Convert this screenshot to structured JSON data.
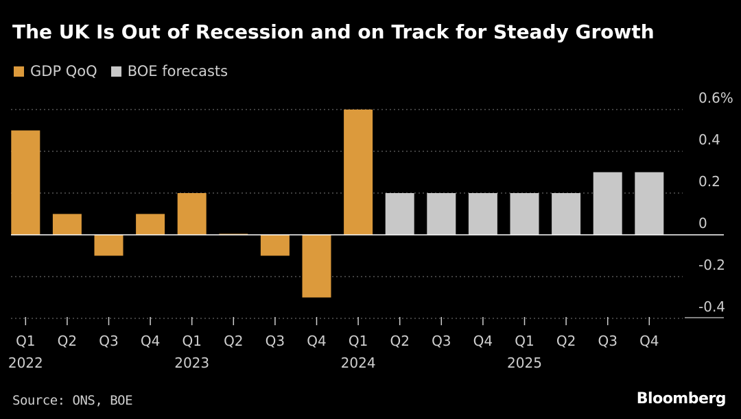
{
  "chart_data": {
    "type": "bar",
    "title": "The UK Is Out of Recession and on Track for Steady Growth",
    "legend": [
      {
        "label": "GDP QoQ",
        "color": "#dc9a3c"
      },
      {
        "label": "BOE forecasts",
        "color": "#c8c8c8"
      }
    ],
    "categories": [
      "Q1 2022",
      "Q2 2022",
      "Q3 2022",
      "Q4 2022",
      "Q1 2023",
      "Q2 2023",
      "Q3 2023",
      "Q4 2023",
      "Q1 2024",
      "Q2 2024",
      "Q3 2024",
      "Q4 2024",
      "Q1 2025",
      "Q2 2025",
      "Q3 2025",
      "Q4 2025"
    ],
    "tick_labels": [
      "Q1",
      "Q2",
      "Q3",
      "Q4",
      "Q1",
      "Q2",
      "Q3",
      "Q4",
      "Q1",
      "Q2",
      "Q3",
      "Q4",
      "Q1",
      "Q2",
      "Q3",
      "Q4"
    ],
    "year_labels": [
      {
        "index": 0,
        "label": "2022"
      },
      {
        "index": 4,
        "label": "2023"
      },
      {
        "index": 8,
        "label": "2024"
      },
      {
        "index": 12,
        "label": "2025"
      }
    ],
    "series": [
      {
        "name": "GDP QoQ",
        "color": "#dc9a3c",
        "values": [
          0.5,
          0.1,
          -0.1,
          0.1,
          0.2,
          0.0,
          -0.1,
          -0.3,
          0.6,
          null,
          null,
          null,
          null,
          null,
          null,
          null
        ]
      },
      {
        "name": "BOE forecasts",
        "color": "#c8c8c8",
        "values": [
          null,
          null,
          null,
          null,
          null,
          null,
          null,
          null,
          null,
          0.2,
          0.2,
          0.2,
          0.2,
          0.2,
          0.3,
          0.3
        ]
      }
    ],
    "yticks": [
      0.6,
      0.4,
      0.2,
      0,
      -0.2,
      -0.4
    ],
    "ytick_labels": [
      "0.6%",
      "0.4",
      "0.2",
      "0",
      "-0.2",
      "-0.4"
    ],
    "ylim": [
      -0.4,
      0.6
    ],
    "xlabel": "",
    "ylabel": "",
    "grid": "dotted horizontal"
  },
  "footer": {
    "source": "Source: ONS, BOE",
    "brand": "Bloomberg"
  }
}
